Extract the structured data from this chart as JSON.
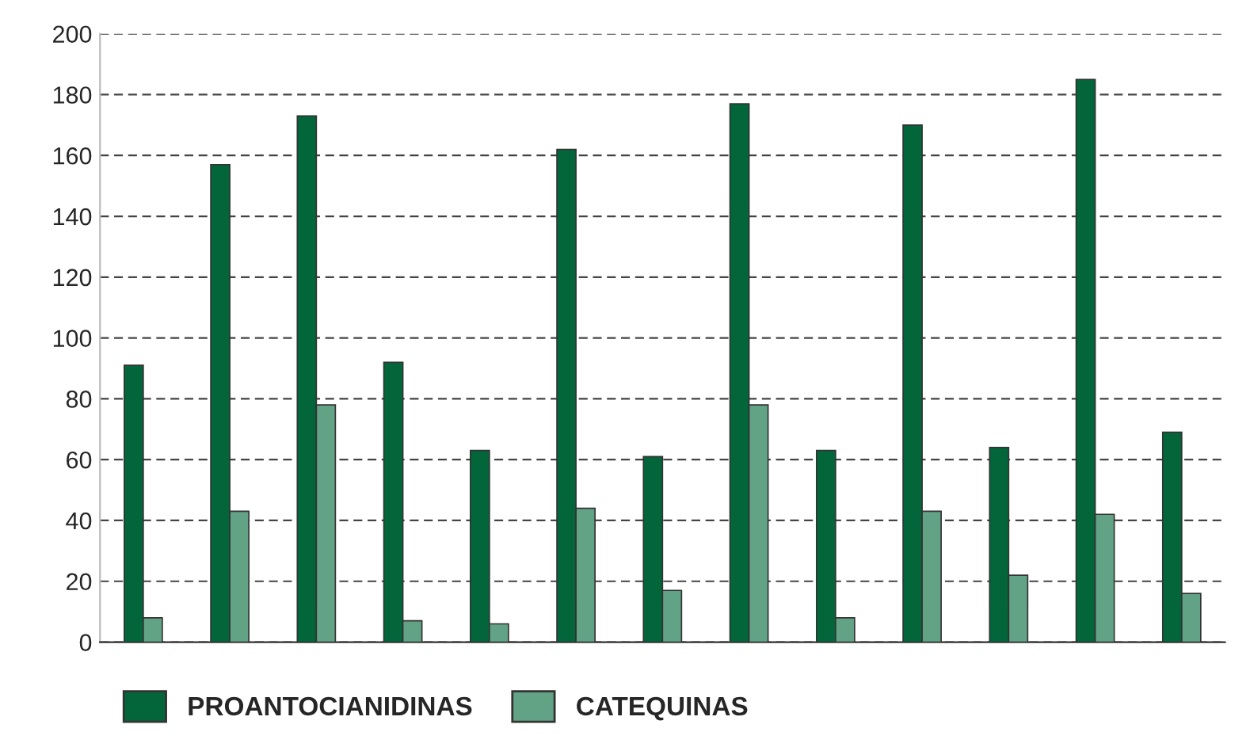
{
  "chart_data": {
    "type": "bar",
    "categories": [
      null,
      null,
      null,
      null,
      null,
      null,
      null,
      null,
      null,
      null,
      null,
      null,
      null
    ],
    "series": [
      {
        "name": "PROANTOCIANIDINAS",
        "color": "#02663a",
        "values": [
          91,
          157,
          173,
          92,
          63,
          162,
          61,
          177,
          63,
          170,
          64,
          185,
          69
        ]
      },
      {
        "name": "CATEQUINAS",
        "color": "#62a386",
        "values": [
          8,
          43,
          78,
          7,
          6,
          44,
          17,
          78,
          8,
          43,
          22,
          42,
          16
        ]
      }
    ],
    "ylim": [
      0,
      200
    ],
    "yticks": [
      0,
      20,
      40,
      60,
      80,
      100,
      120,
      140,
      160,
      180,
      200
    ],
    "grid": "y",
    "legend": "bottom left",
    "tick_labels": "y"
  }
}
